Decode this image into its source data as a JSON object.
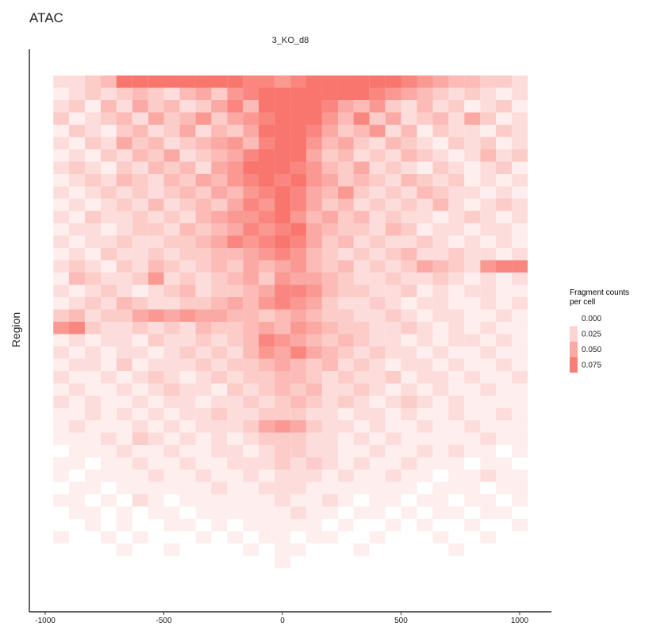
{
  "chart_data": {
    "type": "heatmap",
    "title": "ATAC",
    "facet": "3_KO_d8",
    "y_label": "Region",
    "legend_title": "Fragment counts\nper cell",
    "colors": [
      "#ffffff",
      "#f8766d"
    ],
    "zlim": [
      0,
      0.08
    ],
    "legend_ticks": [
      {
        "value": 0,
        "label": "0.000"
      },
      {
        "value": 0.025,
        "label": "0.025"
      },
      {
        "value": 0.05,
        "label": "0.050"
      },
      {
        "value": 0.075,
        "label": "0.075"
      }
    ],
    "xlim": [
      -1067,
      1134
    ],
    "xticks": [
      -1000,
      -500,
      0,
      500,
      1000
    ],
    "x": [
      -933,
      -867,
      -800,
      -733,
      -667,
      -600,
      -533,
      -467,
      -400,
      -333,
      -267,
      -200,
      -133,
      -67,
      0,
      67,
      133,
      200,
      267,
      333,
      400,
      467,
      533,
      600,
      667,
      733,
      800,
      867,
      933,
      1000
    ],
    "values": [
      [
        0.02,
        0.02,
        0.03,
        0.04,
        0.08,
        0.08,
        0.08,
        0.08,
        0.08,
        0.08,
        0.08,
        0.08,
        0.07,
        0.07,
        0.06,
        0.07,
        0.08,
        0.08,
        0.08,
        0.08,
        0.08,
        0.08,
        0.07,
        0.06,
        0.05,
        0.04,
        0.04,
        0.03,
        0.03,
        0.02
      ],
      [
        0.01,
        0.02,
        0.03,
        0.02,
        0.03,
        0.04,
        0.03,
        0.02,
        0.04,
        0.05,
        0.03,
        0.06,
        0.07,
        0.08,
        0.08,
        0.08,
        0.08,
        0.08,
        0.08,
        0.08,
        0.07,
        0.06,
        0.05,
        0.04,
        0.03,
        0.02,
        0.03,
        0.02,
        0.01,
        0.02
      ],
      [
        0.02,
        0.03,
        0.01,
        0.04,
        0.02,
        0.05,
        0.03,
        0.04,
        0.02,
        0.03,
        0.05,
        0.07,
        0.04,
        0.08,
        0.08,
        0.08,
        0.08,
        0.07,
        0.05,
        0.04,
        0.06,
        0.03,
        0.02,
        0.04,
        0.02,
        0.03,
        0.01,
        0.02,
        0.03,
        0.01
      ],
      [
        0.03,
        0.01,
        0.02,
        0.03,
        0.04,
        0.02,
        0.05,
        0.03,
        0.04,
        0.06,
        0.03,
        0.05,
        0.06,
        0.07,
        0.08,
        0.08,
        0.08,
        0.06,
        0.04,
        0.07,
        0.03,
        0.05,
        0.02,
        0.03,
        0.04,
        0.02,
        0.05,
        0.03,
        0.01,
        0.02
      ],
      [
        0.01,
        0.03,
        0.02,
        0.01,
        0.03,
        0.04,
        0.02,
        0.03,
        0.05,
        0.02,
        0.04,
        0.03,
        0.05,
        0.08,
        0.08,
        0.08,
        0.07,
        0.05,
        0.03,
        0.04,
        0.06,
        0.02,
        0.04,
        0.01,
        0.03,
        0.02,
        0.02,
        0.01,
        0.03,
        0.02
      ],
      [
        0.02,
        0.01,
        0.03,
        0.02,
        0.05,
        0.03,
        0.04,
        0.02,
        0.03,
        0.04,
        0.05,
        0.06,
        0.04,
        0.07,
        0.08,
        0.08,
        0.06,
        0.04,
        0.05,
        0.03,
        0.02,
        0.04,
        0.03,
        0.02,
        0.01,
        0.03,
        0.02,
        0.03,
        0.01,
        0.02
      ],
      [
        0.01,
        0.02,
        0.01,
        0.03,
        0.02,
        0.04,
        0.03,
        0.05,
        0.02,
        0.03,
        0.04,
        0.05,
        0.07,
        0.08,
        0.08,
        0.08,
        0.05,
        0.03,
        0.04,
        0.02,
        0.03,
        0.02,
        0.04,
        0.03,
        0.02,
        0.01,
        0.02,
        0.04,
        0.02,
        0.03
      ],
      [
        0.02,
        0.03,
        0.02,
        0.01,
        0.03,
        0.02,
        0.04,
        0.03,
        0.04,
        0.02,
        0.05,
        0.06,
        0.08,
        0.08,
        0.08,
        0.07,
        0.06,
        0.04,
        0.03,
        0.05,
        0.02,
        0.03,
        0.02,
        0.01,
        0.03,
        0.02,
        0.01,
        0.02,
        0.03,
        0.01
      ],
      [
        0.01,
        0.02,
        0.03,
        0.02,
        0.04,
        0.03,
        0.02,
        0.04,
        0.03,
        0.05,
        0.04,
        0.06,
        0.07,
        0.08,
        0.07,
        0.08,
        0.06,
        0.05,
        0.03,
        0.04,
        0.03,
        0.02,
        0.04,
        0.03,
        0.02,
        0.03,
        0.01,
        0.02,
        0.01,
        0.02
      ],
      [
        0.02,
        0.01,
        0.02,
        0.03,
        0.02,
        0.03,
        0.02,
        0.03,
        0.04,
        0.03,
        0.05,
        0.04,
        0.06,
        0.07,
        0.08,
        0.07,
        0.05,
        0.04,
        0.06,
        0.03,
        0.02,
        0.03,
        0.02,
        0.04,
        0.03,
        0.02,
        0.02,
        0.01,
        0.02,
        0.01
      ],
      [
        0.01,
        0.02,
        0.01,
        0.02,
        0.03,
        0.02,
        0.04,
        0.02,
        0.03,
        0.04,
        0.03,
        0.05,
        0.07,
        0.06,
        0.08,
        0.07,
        0.05,
        0.03,
        0.04,
        0.02,
        0.03,
        0.02,
        0.03,
        0.02,
        0.04,
        0.02,
        0.01,
        0.02,
        0.03,
        0.02
      ],
      [
        0.02,
        0.01,
        0.03,
        0.02,
        0.02,
        0.03,
        0.02,
        0.03,
        0.02,
        0.04,
        0.05,
        0.06,
        0.06,
        0.07,
        0.08,
        0.06,
        0.04,
        0.05,
        0.03,
        0.04,
        0.02,
        0.03,
        0.02,
        0.02,
        0.01,
        0.02,
        0.03,
        0.02,
        0.01,
        0.02
      ],
      [
        0.01,
        0.02,
        0.02,
        0.01,
        0.02,
        0.03,
        0.03,
        0.02,
        0.04,
        0.03,
        0.04,
        0.05,
        0.07,
        0.06,
        0.07,
        0.08,
        0.05,
        0.04,
        0.03,
        0.03,
        0.02,
        0.04,
        0.03,
        0.01,
        0.02,
        0.02,
        0.01,
        0.02,
        0.02,
        0.01
      ],
      [
        0.02,
        0.01,
        0.02,
        0.02,
        0.03,
        0.02,
        0.02,
        0.03,
        0.03,
        0.04,
        0.05,
        0.07,
        0.06,
        0.07,
        0.08,
        0.07,
        0.05,
        0.03,
        0.04,
        0.02,
        0.03,
        0.02,
        0.02,
        0.03,
        0.02,
        0.01,
        0.02,
        0.01,
        0.02,
        0.01
      ],
      [
        0.01,
        0.02,
        0.01,
        0.03,
        0.02,
        0.02,
        0.03,
        0.02,
        0.03,
        0.03,
        0.04,
        0.04,
        0.05,
        0.06,
        0.07,
        0.06,
        0.04,
        0.03,
        0.02,
        0.03,
        0.02,
        0.03,
        0.04,
        0.02,
        0.02,
        0.03,
        0.02,
        0.02,
        0.01,
        0.02
      ],
      [
        0.02,
        0.03,
        0.02,
        0.01,
        0.03,
        0.02,
        0.04,
        0.03,
        0.02,
        0.03,
        0.04,
        0.03,
        0.05,
        0.04,
        0.05,
        0.06,
        0.04,
        0.03,
        0.04,
        0.02,
        0.03,
        0.02,
        0.03,
        0.05,
        0.04,
        0.03,
        0.02,
        0.06,
        0.07,
        0.07
      ],
      [
        0.01,
        0.04,
        0.03,
        0.02,
        0.02,
        0.03,
        0.06,
        0.02,
        0.03,
        0.02,
        0.03,
        0.04,
        0.05,
        0.03,
        0.06,
        0.05,
        0.05,
        0.04,
        0.03,
        0.02,
        0.02,
        0.03,
        0.02,
        0.02,
        0.03,
        0.02,
        0.01,
        0.02,
        0.01,
        0.02
      ],
      [
        0.02,
        0.01,
        0.02,
        0.03,
        0.02,
        0.01,
        0.02,
        0.03,
        0.04,
        0.02,
        0.03,
        0.03,
        0.04,
        0.05,
        0.07,
        0.07,
        0.06,
        0.04,
        0.03,
        0.03,
        0.02,
        0.02,
        0.03,
        0.01,
        0.02,
        0.01,
        0.02,
        0.02,
        0.01,
        0.01
      ],
      [
        0.01,
        0.02,
        0.03,
        0.02,
        0.04,
        0.03,
        0.02,
        0.02,
        0.03,
        0.03,
        0.04,
        0.05,
        0.04,
        0.06,
        0.07,
        0.06,
        0.05,
        0.03,
        0.02,
        0.02,
        0.03,
        0.02,
        0.01,
        0.02,
        0.02,
        0.01,
        0.01,
        0.02,
        0.01,
        0.02
      ],
      [
        0.03,
        0.04,
        0.02,
        0.03,
        0.03,
        0.05,
        0.06,
        0.05,
        0.06,
        0.05,
        0.05,
        0.04,
        0.04,
        0.03,
        0.04,
        0.05,
        0.04,
        0.03,
        0.03,
        0.02,
        0.02,
        0.03,
        0.02,
        0.01,
        0.02,
        0.02,
        0.01,
        0.01,
        0.02,
        0.01
      ],
      [
        0.06,
        0.07,
        0.03,
        0.02,
        0.02,
        0.03,
        0.02,
        0.03,
        0.02,
        0.04,
        0.03,
        0.03,
        0.04,
        0.05,
        0.04,
        0.06,
        0.05,
        0.04,
        0.03,
        0.03,
        0.02,
        0.02,
        0.03,
        0.02,
        0.01,
        0.02,
        0.01,
        0.02,
        0.01,
        0.01
      ],
      [
        0.01,
        0.02,
        0.01,
        0.02,
        0.02,
        0.01,
        0.03,
        0.02,
        0.02,
        0.03,
        0.02,
        0.03,
        0.04,
        0.07,
        0.06,
        0.05,
        0.04,
        0.03,
        0.04,
        0.03,
        0.02,
        0.02,
        0.01,
        0.02,
        0.01,
        0.02,
        0.02,
        0.01,
        0.02,
        0.01
      ],
      [
        0.02,
        0.01,
        0.02,
        0.01,
        0.02,
        0.02,
        0.01,
        0.02,
        0.03,
        0.02,
        0.03,
        0.02,
        0.04,
        0.06,
        0.05,
        0.07,
        0.05,
        0.04,
        0.03,
        0.02,
        0.03,
        0.02,
        0.02,
        0.01,
        0.02,
        0.01,
        0.01,
        0.02,
        0.01,
        0.01
      ],
      [
        0.01,
        0.02,
        0.02,
        0.01,
        0.03,
        0.01,
        0.02,
        0.02,
        0.02,
        0.03,
        0.02,
        0.03,
        0.03,
        0.04,
        0.05,
        0.04,
        0.03,
        0.04,
        0.02,
        0.03,
        0.02,
        0.01,
        0.02,
        0.02,
        0.01,
        0.02,
        0.01,
        0.01,
        0.02,
        0.01
      ],
      [
        0.02,
        0.01,
        0.01,
        0.02,
        0.01,
        0.02,
        0.03,
        0.02,
        0.01,
        0.02,
        0.03,
        0.02,
        0.03,
        0.03,
        0.04,
        0.04,
        0.03,
        0.02,
        0.03,
        0.02,
        0.02,
        0.03,
        0.01,
        0.02,
        0.02,
        0.01,
        0.02,
        0.01,
        0.01,
        0.02
      ],
      [
        0.01,
        0.02,
        0.01,
        0.01,
        0.02,
        0.01,
        0.02,
        0.03,
        0.02,
        0.02,
        0.01,
        0.03,
        0.02,
        0.03,
        0.04,
        0.03,
        0.04,
        0.02,
        0.02,
        0.03,
        0.02,
        0.01,
        0.02,
        0.01,
        0.02,
        0.01,
        0.01,
        0.02,
        0.01,
        0.01
      ],
      [
        0.02,
        0.01,
        0.02,
        0.01,
        0.01,
        0.02,
        0.01,
        0.02,
        0.02,
        0.01,
        0.02,
        0.02,
        0.03,
        0.02,
        0.03,
        0.04,
        0.03,
        0.02,
        0.03,
        0.02,
        0.01,
        0.02,
        0.03,
        0.02,
        0.01,
        0.02,
        0.01,
        0.01,
        0.01,
        0.01
      ],
      [
        0.01,
        0.01,
        0.02,
        0.01,
        0.02,
        0.01,
        0.02,
        0.01,
        0.02,
        0.02,
        0.03,
        0.02,
        0.02,
        0.03,
        0.03,
        0.03,
        0.02,
        0.02,
        0.01,
        0.02,
        0.02,
        0.01,
        0.02,
        0.01,
        0.01,
        0.02,
        0.01,
        0.01,
        0.02,
        0.01
      ],
      [
        0.01,
        0.02,
        0.01,
        0.01,
        0.01,
        0.02,
        0.01,
        0.02,
        0.01,
        0.02,
        0.02,
        0.02,
        0.03,
        0.05,
        0.06,
        0.05,
        0.03,
        0.02,
        0.02,
        0.01,
        0.02,
        0.01,
        0.01,
        0.02,
        0.01,
        0.01,
        0.02,
        0.01,
        0.01,
        0.01
      ],
      [
        0.01,
        0.01,
        0.01,
        0.02,
        0.01,
        0.03,
        0.02,
        0.01,
        0.02,
        0.01,
        0.02,
        0.01,
        0.02,
        0.03,
        0.03,
        0.03,
        0.02,
        0.02,
        0.01,
        0.02,
        0.01,
        0.02,
        0.01,
        0.01,
        0.01,
        0.01,
        0.01,
        0.02,
        0.01,
        0.01
      ],
      [
        0,
        0.01,
        0.01,
        0.01,
        0.02,
        0.01,
        0.01,
        0.02,
        0.01,
        0.01,
        0.02,
        0.02,
        0.01,
        0.02,
        0.03,
        0.03,
        0.02,
        0.02,
        0.01,
        0.01,
        0.02,
        0.01,
        0.01,
        0.02,
        0.01,
        0.02,
        0.01,
        0.01,
        0,
        0.01
      ],
      [
        0.01,
        0.01,
        0,
        0.01,
        0.01,
        0.02,
        0.01,
        0.01,
        0.02,
        0.01,
        0.01,
        0.02,
        0.02,
        0.02,
        0.03,
        0.02,
        0.03,
        0.02,
        0.01,
        0.02,
        0.01,
        0.01,
        0.02,
        0.01,
        0.01,
        0.01,
        0,
        0.01,
        0.01,
        0
      ],
      [
        0.01,
        0,
        0.01,
        0.01,
        0.01,
        0.01,
        0.02,
        0.01,
        0.01,
        0.02,
        0.01,
        0.01,
        0.02,
        0.01,
        0.02,
        0.02,
        0.02,
        0.01,
        0.02,
        0.01,
        0.01,
        0.02,
        0.01,
        0.01,
        0,
        0.01,
        0.01,
        0.02,
        0.01,
        0.01
      ],
      [
        0,
        0.01,
        0.01,
        0,
        0.01,
        0.01,
        0.01,
        0.01,
        0.01,
        0.01,
        0.02,
        0.01,
        0.01,
        0.02,
        0.02,
        0.02,
        0.01,
        0.01,
        0.01,
        0.01,
        0.01,
        0.01,
        0.01,
        0,
        0.01,
        0.01,
        0.01,
        0,
        0.01,
        0.01
      ],
      [
        0.01,
        0.01,
        0,
        0.01,
        0,
        0.02,
        0.01,
        0,
        0.01,
        0.01,
        0.01,
        0.01,
        0.01,
        0.01,
        0.02,
        0.01,
        0.01,
        0.02,
        0.01,
        0,
        0.01,
        0.01,
        0,
        0.01,
        0.01,
        0,
        0.01,
        0.01,
        0,
        0.01
      ],
      [
        0,
        0.01,
        0.01,
        0,
        0.01,
        0,
        0.01,
        0.01,
        0,
        0.01,
        0.01,
        0.01,
        0.01,
        0.01,
        0.01,
        0.02,
        0.01,
        0.01,
        0,
        0.01,
        0.01,
        0,
        0.01,
        0,
        0.01,
        0.01,
        0,
        0.01,
        0.01,
        0
      ],
      [
        0,
        0,
        0.01,
        0,
        0.01,
        0,
        0,
        0.01,
        0.01,
        0,
        0.01,
        0,
        0.01,
        0.01,
        0.01,
        0.01,
        0.01,
        0,
        0.01,
        0,
        0,
        0.01,
        0,
        0.01,
        0,
        0,
        0.01,
        0,
        0,
        0.01
      ],
      [
        0.01,
        0,
        0,
        0.01,
        0,
        0.01,
        0,
        0,
        0,
        0.01,
        0,
        0.01,
        0,
        0.01,
        0.01,
        0,
        0.01,
        0.01,
        0,
        0,
        0.01,
        0,
        0,
        0,
        0.01,
        0,
        0,
        0.01,
        0,
        0
      ],
      [
        0,
        0,
        0,
        0,
        0.01,
        0,
        0,
        0.01,
        0,
        0,
        0,
        0,
        0.01,
        0,
        0.01,
        0.01,
        0,
        0,
        0,
        0.01,
        0,
        0,
        0,
        0,
        0,
        0.01,
        0,
        0,
        0,
        0
      ],
      [
        0,
        0,
        0,
        0,
        0,
        0,
        0,
        0,
        0,
        0,
        0,
        0,
        0,
        0,
        0.01,
        0,
        0,
        0,
        0,
        0,
        0,
        0,
        0,
        0,
        0,
        0,
        0,
        0,
        0,
        0
      ]
    ]
  }
}
